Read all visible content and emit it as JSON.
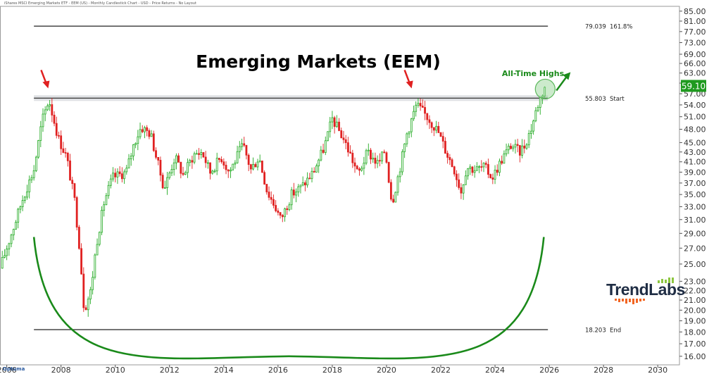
{
  "header": {
    "subtitle": "iShares MSCI Emerging Markets ETF - EEM (US) - Monthly Candlestick Chart - USD - Price Returns - No Layout",
    "software": "Optuma",
    "logo_text": "TrendLabs"
  },
  "colors": {
    "up": "#22aa22",
    "down": "#e02020",
    "arc": "#1a8a1a",
    "arrow_red": "#e02020",
    "arrow_green": "#1a8a1a",
    "price_box": "#1f9a1f"
  },
  "chart_data": {
    "type": "candlestick",
    "title": "Emerging Markets (EEM)",
    "xlabel": "",
    "ylabel": "",
    "y_scale": "log",
    "x_range": [
      2005.75,
      2030.8
    ],
    "y_range": [
      15.35,
      87.0
    ],
    "x_ticks": [
      "2006",
      "2008",
      "2010",
      "2012",
      "2014",
      "2016",
      "2018",
      "2020",
      "2022",
      "2024",
      "2026",
      "2028",
      "2030"
    ],
    "y_ticks": [
      "85.00",
      "81.00",
      "77.00",
      "73.00",
      "69.00",
      "66.00",
      "63.00",
      "60.00",
      "57.00",
      "54.00",
      "51.00",
      "48.00",
      "45.00",
      "43.00",
      "41.00",
      "39.00",
      "37.00",
      "35.00",
      "33.00",
      "31.00",
      "29.00",
      "27.00",
      "25.00",
      "23.00",
      "22.00",
      "21.00",
      "20.00",
      "19.00",
      "18.00",
      "17.00",
      "16.00"
    ],
    "last_price": "59.10",
    "levels": [
      {
        "value": 79.039,
        "label": "79.039",
        "tag": "161.8%"
      },
      {
        "value": 55.803,
        "label": "55.803",
        "tag": "Start"
      },
      {
        "value": 18.203,
        "label": "18.203",
        "tag": "End"
      }
    ],
    "annotations": {
      "highs_label": "All-Time Highs",
      "peak_arrows": [
        2007.5,
        2020.9
      ]
    },
    "anchors": [
      [
        2005.75,
        24.5
      ],
      [
        2006.3,
        30.5
      ],
      [
        2006.6,
        34.5
      ],
      [
        2007.0,
        39.5
      ],
      [
        2007.3,
        50.0
      ],
      [
        2007.55,
        55.5
      ],
      [
        2007.9,
        46.0
      ],
      [
        2008.2,
        42.0
      ],
      [
        2008.5,
        34.0
      ],
      [
        2008.7,
        26.5
      ],
      [
        2008.85,
        20.0
      ],
      [
        2009.1,
        22.0
      ],
      [
        2009.3,
        27.5
      ],
      [
        2009.6,
        34.0
      ],
      [
        2009.9,
        38.0
      ],
      [
        2010.4,
        39.0
      ],
      [
        2010.7,
        45.0
      ],
      [
        2010.95,
        48.5
      ],
      [
        2011.3,
        47.0
      ],
      [
        2011.6,
        40.0
      ],
      [
        2011.8,
        36.0
      ],
      [
        2012.2,
        42.0
      ],
      [
        2012.5,
        38.5
      ],
      [
        2012.9,
        42.5
      ],
      [
        2013.2,
        43.0
      ],
      [
        2013.5,
        39.0
      ],
      [
        2013.9,
        42.0
      ],
      [
        2014.2,
        39.0
      ],
      [
        2014.7,
        44.5
      ],
      [
        2015.0,
        39.5
      ],
      [
        2015.3,
        42.0
      ],
      [
        2015.6,
        35.5
      ],
      [
        2015.9,
        33.0
      ],
      [
        2016.1,
        31.0
      ],
      [
        2016.5,
        35.0
      ],
      [
        2016.9,
        36.5
      ],
      [
        2017.3,
        39.0
      ],
      [
        2017.7,
        44.0
      ],
      [
        2018.0,
        50.5
      ],
      [
        2018.4,
        46.0
      ],
      [
        2018.7,
        42.0
      ],
      [
        2018.95,
        38.5
      ],
      [
        2019.3,
        43.0
      ],
      [
        2019.7,
        40.5
      ],
      [
        2019.95,
        43.5
      ],
      [
        2020.2,
        33.5
      ],
      [
        2020.5,
        40.0
      ],
      [
        2020.75,
        47.0
      ],
      [
        2021.1,
        54.0
      ],
      [
        2021.5,
        51.0
      ],
      [
        2021.9,
        47.5
      ],
      [
        2022.2,
        43.0
      ],
      [
        2022.5,
        39.5
      ],
      [
        2022.75,
        35.5
      ],
      [
        2022.95,
        40.0
      ],
      [
        2023.3,
        39.5
      ],
      [
        2023.6,
        40.0
      ],
      [
        2023.9,
        38.0
      ],
      [
        2024.3,
        42.0
      ],
      [
        2024.6,
        44.5
      ],
      [
        2024.9,
        43.0
      ],
      [
        2025.1,
        44.5
      ],
      [
        2025.35,
        48.5
      ],
      [
        2025.55,
        53.5
      ],
      [
        2025.7,
        56.5
      ],
      [
        2025.85,
        59.1
      ]
    ]
  }
}
